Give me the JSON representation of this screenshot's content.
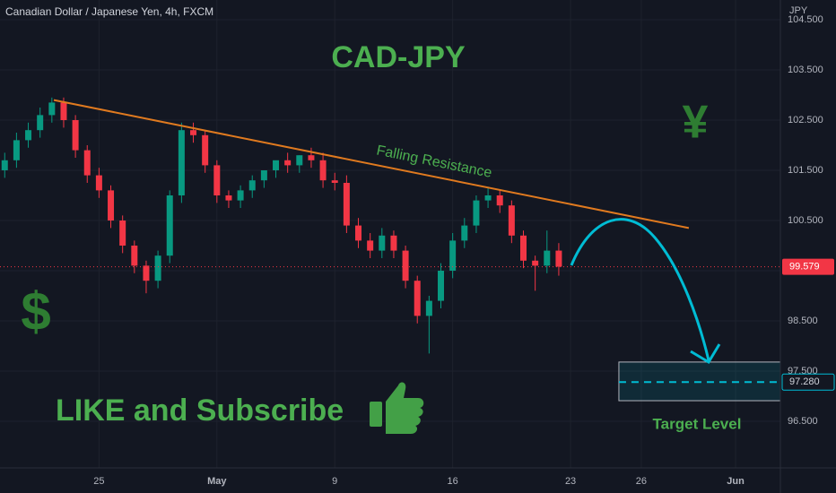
{
  "chart_data": {
    "type": "candlestick",
    "title": "Canadian Dollar / Japanese Yen, 4h, FXCM",
    "y_axis_label": "JPY",
    "up_color": "#089981",
    "down_color": "#f23645",
    "grid": true,
    "xlim": [
      -145.2,
      53.4
    ],
    "ylim": [
      95.571,
      104.893
    ],
    "xticks": [
      {
        "value": -120,
        "label": "25"
      },
      {
        "value": -90,
        "label": "May"
      },
      {
        "value": -60,
        "label": "9"
      },
      {
        "value": -30,
        "label": "16"
      },
      {
        "value": 0,
        "label": "23"
      },
      {
        "value": 18,
        "label": "26"
      },
      {
        "value": 42,
        "label": "Jun"
      }
    ],
    "yticks": [
      {
        "value": 96.5,
        "label": "96.500"
      },
      {
        "value": 97.5,
        "label": "97.500"
      },
      {
        "value": 98.5,
        "label": "98.500"
      },
      {
        "value": 99.5,
        "label": "99.500"
      },
      {
        "value": 100.5,
        "label": "100.500"
      },
      {
        "value": 101.5,
        "label": "101.500"
      },
      {
        "value": 102.5,
        "label": "102.500"
      },
      {
        "value": 103.5,
        "label": "103.500"
      },
      {
        "value": 104.5,
        "label": "104.500"
      }
    ],
    "x": [
      -144,
      -141,
      -138,
      -135,
      -132,
      -129,
      -126,
      -123,
      -120,
      -117,
      -114,
      -111,
      -108,
      -105,
      -102,
      -99,
      -96,
      -93,
      -90,
      -87,
      -84,
      -81,
      -78,
      -75,
      -72,
      -69,
      -66,
      -63,
      -60,
      -57,
      -54,
      -51,
      -48,
      -45,
      -42,
      -39,
      -36,
      -33,
      -30,
      -27,
      -24,
      -21,
      -18,
      -15,
      -12,
      -9,
      -6,
      -3
    ],
    "open": [
      101.5,
      101.7,
      102.1,
      102.3,
      102.6,
      102.85,
      102.5,
      101.9,
      101.4,
      101.1,
      100.5,
      100.0,
      99.6,
      99.3,
      99.8,
      101.0,
      102.3,
      102.2,
      101.6,
      101.0,
      100.9,
      101.1,
      101.3,
      101.5,
      101.7,
      101.6,
      101.8,
      101.7,
      101.3,
      101.25,
      100.4,
      100.1,
      99.9,
      100.2,
      99.9,
      99.3,
      98.6,
      98.9,
      99.5,
      100.1,
      100.4,
      100.9,
      101.0,
      100.8,
      100.2,
      99.7,
      99.6,
      99.9
    ],
    "high": [
      101.85,
      102.25,
      102.45,
      102.75,
      102.95,
      102.95,
      102.6,
      102.0,
      101.55,
      101.2,
      100.6,
      100.1,
      99.7,
      99.9,
      101.1,
      102.45,
      102.45,
      102.3,
      101.7,
      101.1,
      101.2,
      101.4,
      101.45,
      101.65,
      101.85,
      101.8,
      101.95,
      101.85,
      101.45,
      101.4,
      100.55,
      100.25,
      100.35,
      100.3,
      100.0,
      99.4,
      99.0,
      99.65,
      100.25,
      100.55,
      101.0,
      101.15,
      101.1,
      100.9,
      100.3,
      99.8,
      100.3,
      100.05
    ],
    "low": [
      101.35,
      101.55,
      101.95,
      102.15,
      102.45,
      102.35,
      101.75,
      101.25,
      100.95,
      100.35,
      99.85,
      99.45,
      99.05,
      99.15,
      99.65,
      100.85,
      102.05,
      101.45,
      100.85,
      100.75,
      100.75,
      100.95,
      101.15,
      101.35,
      101.45,
      101.45,
      101.55,
      101.15,
      101.1,
      100.25,
      99.95,
      99.75,
      99.75,
      99.75,
      99.15,
      98.45,
      97.85,
      98.75,
      99.35,
      99.95,
      100.25,
      100.75,
      100.65,
      100.05,
      99.55,
      99.1,
      99.45,
      99.4
    ],
    "close": [
      101.7,
      102.1,
      102.3,
      102.6,
      102.85,
      102.5,
      101.9,
      101.4,
      101.1,
      100.5,
      100.0,
      99.6,
      99.3,
      99.8,
      101.0,
      102.3,
      102.2,
      101.6,
      101.0,
      100.9,
      101.1,
      101.3,
      101.5,
      101.7,
      101.6,
      101.8,
      101.7,
      101.3,
      101.25,
      100.4,
      100.1,
      99.9,
      100.2,
      99.9,
      99.3,
      98.6,
      98.9,
      99.5,
      100.1,
      100.4,
      100.9,
      101.0,
      100.8,
      100.2,
      99.7,
      99.6,
      99.9,
      99.58
    ],
    "last_price": 99.579,
    "annotations": {
      "headline": "CAD-JPY",
      "resistance": {
        "label": "Falling Resistance",
        "color": "#e07a1f",
        "x": [
          -131.5,
          30.1
        ],
        "y": [
          102.9,
          100.35
        ]
      },
      "target": {
        "label": "Target Level",
        "price": {
          "value": 97.28,
          "label": "97.280"
        },
        "x": [
          12.3,
          53.4
        ],
        "y": [
          96.91,
          97.68
        ],
        "color": "#00bcd4"
      },
      "call_to_action": "LIKE and Subscribe",
      "dollar": "$",
      "yen": "¥"
    }
  }
}
